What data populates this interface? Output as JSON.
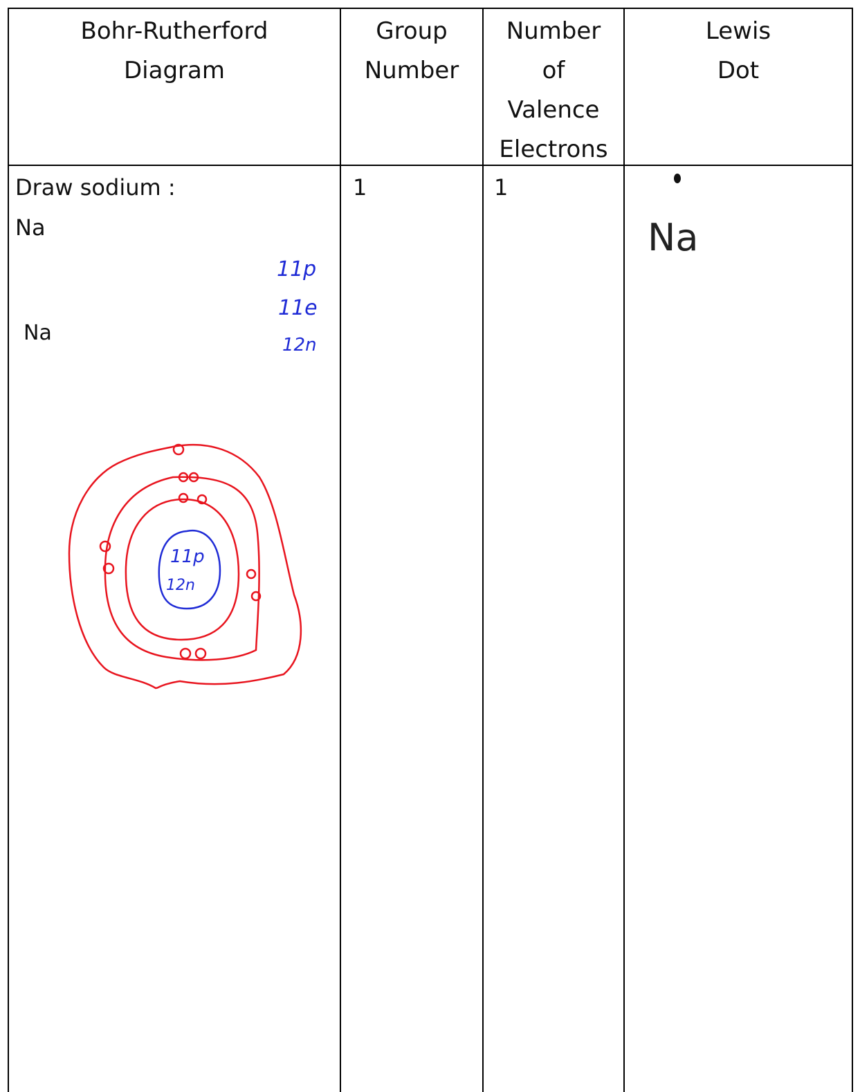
{
  "table": {
    "header": [
      [
        "Bohr-Rutherford",
        "Diagram"
      ],
      [
        "Group",
        "Number"
      ],
      [
        "Number",
        "of",
        "Valence",
        "Electrons"
      ],
      [
        "Lewis",
        "Dot"
      ]
    ],
    "rows": [
      {
        "bohr": {
          "prompt": "Draw sodium :",
          "symbol": "Na",
          "label": "Na",
          "notes": [
            "11p",
            "11e",
            "12n"
          ],
          "nucleus": [
            "11p",
            "12n"
          ]
        },
        "group": "1",
        "valence": "1",
        "lewis": "Na"
      }
    ]
  }
}
